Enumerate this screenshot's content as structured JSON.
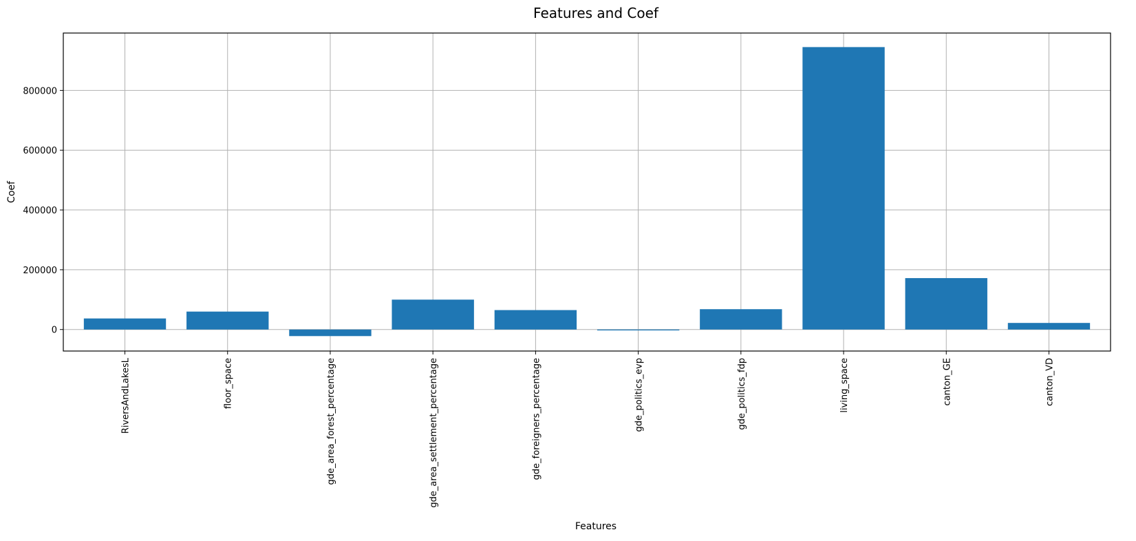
{
  "chart_data": {
    "type": "bar",
    "title": "Features and Coef",
    "xlabel": "Features",
    "ylabel": "Coef",
    "categories": [
      "RiversAndLakesL",
      "floor_space",
      "gde_area_forest_percentage",
      "gde_area_settlement_percentage",
      "gde_foreigners_percentage",
      "gde_politics_evp",
      "gde_politics_fdp",
      "living_space",
      "canton_GE",
      "canton_VD"
    ],
    "values": [
      37000,
      60000,
      -22000,
      100000,
      65000,
      -3000,
      68000,
      945000,
      172000,
      22000
    ],
    "ylim": [
      -72000,
      992000
    ],
    "yticks": [
      0,
      200000,
      400000,
      600000,
      800000
    ],
    "grid": true,
    "bar_color": "#1f77b4"
  }
}
